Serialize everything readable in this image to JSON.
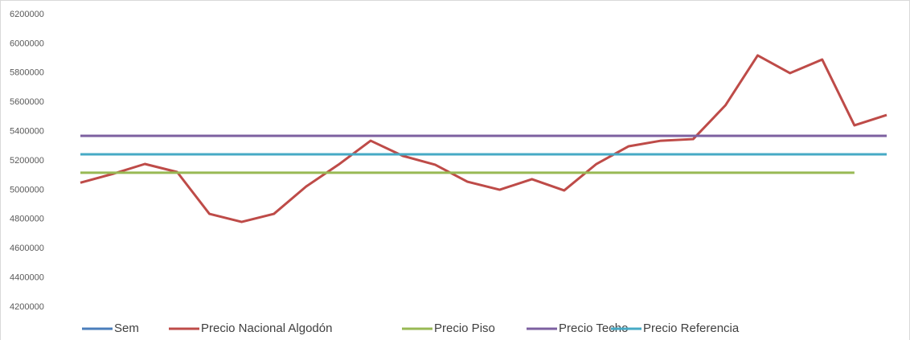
{
  "chart_data": {
    "type": "line",
    "categories": [
      null,
      null,
      null,
      null,
      null,
      null,
      null,
      null,
      null,
      null,
      null,
      null,
      null,
      null,
      null,
      null,
      null,
      null,
      null,
      null,
      null,
      null,
      null,
      null,
      null,
      null
    ],
    "series": [
      {
        "name": "Sem",
        "color": "#4a7ebb",
        "values": [
          null,
          null,
          null,
          null,
          null,
          null,
          null,
          null,
          null,
          null,
          null,
          null,
          null,
          null,
          null,
          null,
          null,
          null,
          null,
          null,
          null,
          null,
          null,
          null,
          null,
          null
        ]
      },
      {
        "name": "Precio Nacional Algodón",
        "color": "#be4b48",
        "values": [
          5050000,
          5110000,
          5178000,
          5123000,
          4837000,
          4782000,
          4837000,
          5024000,
          5173000,
          5337000,
          5233000,
          5173000,
          5057000,
          5002000,
          5074000,
          4997000,
          5178000,
          5299000,
          5337000,
          5348000,
          5579000,
          5920000,
          5799000,
          5892000,
          5442000,
          5513000
        ]
      },
      {
        "name": "Precio Piso",
        "color": "#98b954",
        "values": [
          5118000,
          5118000,
          5118000,
          5118000,
          5118000,
          5118000,
          5118000,
          5118000,
          5118000,
          5118000,
          5118000,
          5118000,
          5118000,
          5118000,
          5118000,
          5118000,
          5118000,
          5118000,
          5118000,
          5118000,
          5118000,
          5118000,
          5118000,
          5118000,
          5118000,
          null
        ]
      },
      {
        "name": "Precio Techo",
        "color": "#7d60a0",
        "values": [
          5370000,
          5370000,
          5370000,
          5370000,
          5370000,
          5370000,
          5370000,
          5370000,
          5370000,
          5370000,
          5370000,
          5370000,
          5370000,
          5370000,
          5370000,
          5370000,
          5370000,
          5370000,
          5370000,
          5370000,
          5370000,
          5370000,
          5370000,
          5370000,
          5370000,
          5370000
        ]
      },
      {
        "name": "Precio Referencia",
        "color": "#46aac5",
        "values": [
          5244000,
          5244000,
          5244000,
          5244000,
          5244000,
          5244000,
          5244000,
          5244000,
          5244000,
          5244000,
          5244000,
          5244000,
          5244000,
          5244000,
          5244000,
          5244000,
          5244000,
          5244000,
          5244000,
          5244000,
          5244000,
          5244000,
          5244000,
          5244000,
          5244000,
          5244000
        ]
      }
    ],
    "ylim": [
      4200000,
      6200000
    ],
    "yticks": [
      4200000,
      4400000,
      4600000,
      4800000,
      5000000,
      5200000,
      5400000,
      5600000,
      5800000,
      6000000,
      6200000
    ],
    "grid": false,
    "legend": "bottom"
  }
}
